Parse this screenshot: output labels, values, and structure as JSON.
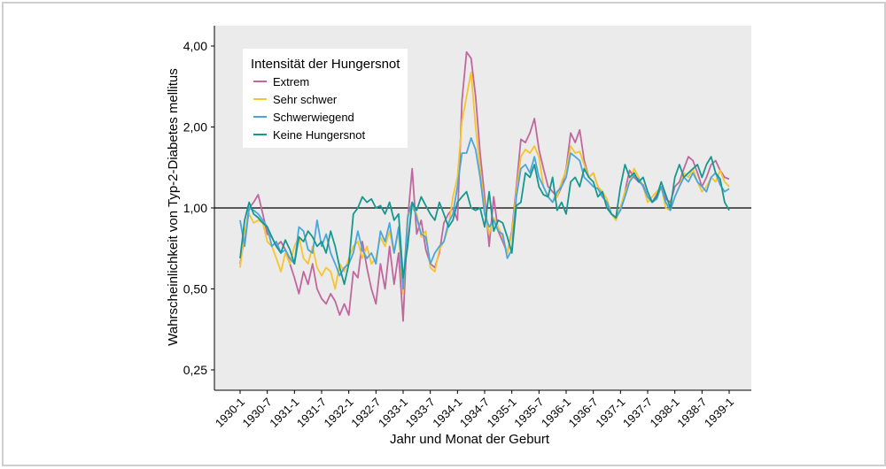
{
  "chart_data": {
    "type": "line",
    "title": "",
    "xlabel": "Jahr und Monat der Geburt",
    "ylabel": "Wahrscheinlichkeit von Typ-2-Diabetes mellitus",
    "y_scale": "log",
    "ylim": [
      0.25,
      4.0
    ],
    "reference_line": 1.0,
    "y_ticks": [
      0.25,
      0.5,
      1.0,
      2.0,
      4.0
    ],
    "y_tick_labels": [
      "0,25",
      "0,50",
      "1,00",
      "2,00",
      "4,00"
    ],
    "x_tick_labels": [
      "1930-1",
      "1930-7",
      "1931-1",
      "1931-7",
      "1932-1",
      "1932-7",
      "1933-1",
      "1933-7",
      "1934-1",
      "1934-7",
      "1935-1",
      "1935-7",
      "1936-1",
      "1936-7",
      "1937-1",
      "1937-7",
      "1938-1",
      "1938-7",
      "1939-1"
    ],
    "x_tick_positions_months": [
      0,
      6,
      12,
      18,
      24,
      30,
      36,
      42,
      48,
      54,
      60,
      66,
      72,
      78,
      84,
      90,
      96,
      102,
      108
    ],
    "x_unit": "months since 1930-1",
    "legend": {
      "title": "Intensität der Hungersnot",
      "position": "top-left"
    },
    "grid": false,
    "series": [
      {
        "name": "Extrem",
        "color": "#c0679e",
        "values": [
          0.62,
          0.78,
          1.0,
          1.05,
          1.12,
          0.95,
          0.8,
          0.78,
          0.72,
          0.75,
          0.7,
          0.62,
          0.55,
          0.48,
          0.58,
          0.52,
          0.62,
          0.5,
          0.46,
          0.44,
          0.48,
          0.45,
          0.4,
          0.44,
          0.4,
          0.58,
          0.55,
          0.75,
          0.6,
          0.5,
          0.44,
          0.62,
          0.5,
          0.72,
          0.52,
          0.68,
          0.38,
          0.9,
          1.4,
          0.8,
          0.9,
          0.7,
          0.62,
          0.6,
          0.68,
          0.88,
          0.95,
          1.0,
          0.9,
          2.5,
          3.8,
          3.6,
          2.6,
          1.6,
          1.1,
          0.72,
          1.1,
          0.82,
          0.75,
          0.68,
          0.82,
          1.2,
          1.8,
          1.75,
          1.9,
          2.15,
          1.65,
          1.4,
          1.2,
          1.15,
          1.1,
          1.2,
          1.4,
          1.9,
          1.75,
          1.95,
          1.5,
          1.3,
          1.35,
          1.2,
          1.1,
          1.05,
          0.95,
          0.92,
          1.0,
          1.15,
          1.38,
          1.3,
          1.25,
          1.22,
          1.1,
          1.05,
          1.12,
          1.2,
          1.08,
          1.05,
          1.2,
          1.25,
          1.4,
          1.55,
          1.5,
          1.35,
          1.2,
          1.3,
          1.45,
          1.5,
          1.38,
          1.3,
          1.28
        ]
      },
      {
        "name": "Sehr schwer",
        "color": "#f6c52c",
        "values": [
          0.6,
          0.82,
          0.95,
          0.88,
          0.9,
          0.88,
          0.75,
          0.72,
          0.65,
          0.58,
          0.68,
          0.62,
          0.72,
          0.78,
          0.65,
          0.62,
          0.72,
          0.6,
          0.56,
          0.6,
          0.58,
          0.5,
          0.62,
          0.58,
          0.65,
          0.72,
          0.75,
          0.65,
          0.72,
          0.62,
          0.65,
          0.78,
          0.72,
          0.82,
          0.68,
          0.82,
          0.48,
          0.95,
          1.0,
          0.95,
          0.78,
          0.82,
          0.6,
          0.58,
          0.7,
          0.75,
          0.85,
          1.1,
          1.3,
          2.1,
          2.6,
          3.2,
          2.0,
          1.4,
          1.0,
          0.8,
          0.92,
          0.85,
          0.78,
          0.68,
          0.8,
          1.15,
          1.55,
          1.65,
          1.6,
          1.7,
          1.55,
          1.2,
          1.1,
          1.05,
          1.1,
          1.25,
          1.38,
          1.7,
          1.6,
          1.62,
          1.45,
          1.3,
          1.35,
          1.2,
          1.15,
          1.08,
          0.95,
          0.9,
          1.0,
          1.15,
          1.25,
          1.4,
          1.3,
          1.2,
          1.05,
          1.1,
          1.15,
          1.2,
          1.0,
          0.98,
          1.1,
          1.2,
          1.35,
          1.3,
          1.4,
          1.25,
          1.15,
          1.2,
          1.3,
          1.25,
          1.38,
          1.25,
          1.2
        ]
      },
      {
        "name": "Schwerwiegend",
        "color": "#4aa6dd",
        "values": [
          0.9,
          0.72,
          1.0,
          0.98,
          0.95,
          0.9,
          0.85,
          0.72,
          0.75,
          0.68,
          0.7,
          0.65,
          0.62,
          0.85,
          0.82,
          0.7,
          0.68,
          0.9,
          0.72,
          0.8,
          0.68,
          0.62,
          0.56,
          0.6,
          0.62,
          0.68,
          0.82,
          0.7,
          0.65,
          0.68,
          0.62,
          0.82,
          0.75,
          0.88,
          0.68,
          0.85,
          0.5,
          0.92,
          1.05,
          0.92,
          0.8,
          0.78,
          0.62,
          0.68,
          0.72,
          0.75,
          0.88,
          0.95,
          1.2,
          1.6,
          1.6,
          1.82,
          1.65,
          1.3,
          0.95,
          0.85,
          0.9,
          0.82,
          0.8,
          0.65,
          0.7,
          1.1,
          1.4,
          1.45,
          1.35,
          1.55,
          1.3,
          1.2,
          1.1,
          1.05,
          1.15,
          1.2,
          1.3,
          1.6,
          1.55,
          1.5,
          1.3,
          1.25,
          1.2,
          1.18,
          1.1,
          1.05,
          0.95,
          0.92,
          0.98,
          1.1,
          1.25,
          1.32,
          1.28,
          1.2,
          1.1,
          1.05,
          1.08,
          1.2,
          1.05,
          0.98,
          1.1,
          1.2,
          1.3,
          1.25,
          1.35,
          1.25,
          1.2,
          1.15,
          1.3,
          1.35,
          1.22,
          1.15,
          1.18
        ]
      },
      {
        "name": "Keine Hungersnot",
        "color": "#16988e",
        "values": [
          0.65,
          0.9,
          1.05,
          0.95,
          0.92,
          0.88,
          0.85,
          0.78,
          0.72,
          0.68,
          0.76,
          0.7,
          0.62,
          0.78,
          0.75,
          0.82,
          0.78,
          0.72,
          0.75,
          0.68,
          0.82,
          0.72,
          0.6,
          0.52,
          0.62,
          0.95,
          1.0,
          1.1,
          1.05,
          1.08,
          1.0,
          1.02,
          0.95,
          1.05,
          0.9,
          0.95,
          0.55,
          0.72,
          1.05,
          0.98,
          1.1,
          1.02,
          0.95,
          0.9,
          1.05,
          0.95,
          0.85,
          0.9,
          1.05,
          1.1,
          1.15,
          1.0,
          0.98,
          1.0,
          0.85,
          1.15,
          0.82,
          0.9,
          0.88,
          0.78,
          0.68,
          1.02,
          1.05,
          1.35,
          1.3,
          1.45,
          1.2,
          1.12,
          1.1,
          1.3,
          0.98,
          1.05,
          0.95,
          1.25,
          1.3,
          1.2,
          1.4,
          1.3,
          1.25,
          1.1,
          1.15,
          1.0,
          0.95,
          0.92,
          1.2,
          1.45,
          1.3,
          1.35,
          1.25,
          1.3,
          1.15,
          1.05,
          1.1,
          1.25,
          1.12,
          1.0,
          1.3,
          1.45,
          1.3,
          1.35,
          1.4,
          1.45,
          1.3,
          1.45,
          1.55,
          1.35,
          1.28,
          1.05,
          0.98
        ]
      }
    ]
  }
}
